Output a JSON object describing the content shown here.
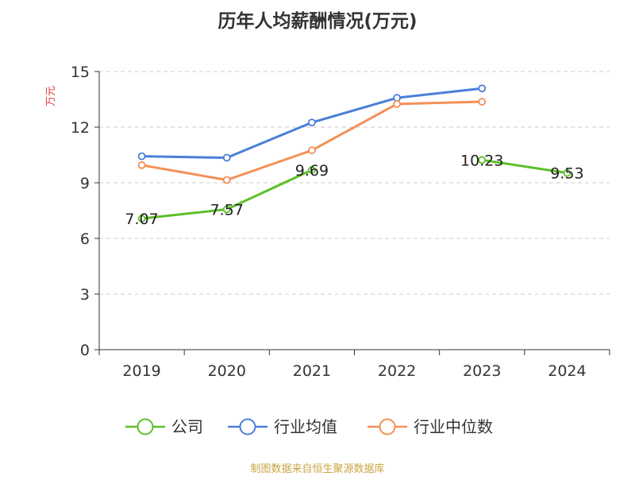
{
  "chart_data": {
    "type": "line",
    "title": "历年人均薪酬情况(万元)",
    "ylabel": "万元",
    "xlabel": "",
    "categories": [
      "2019",
      "2020",
      "2021",
      "2022",
      "2023",
      "2024"
    ],
    "ylim": [
      0,
      15
    ],
    "yticks": [
      0,
      3,
      6,
      9,
      12,
      15
    ],
    "grid": true,
    "legend_position": "bottom",
    "series": [
      {
        "name": "公司",
        "color": "#5cc02a",
        "values": [
          7.07,
          7.57,
          9.69,
          null,
          10.23,
          9.53
        ],
        "show_labels": true
      },
      {
        "name": "行业均值",
        "color": "#4a7fd8",
        "values": [
          10.43,
          10.35,
          12.25,
          13.58,
          14.09,
          null
        ],
        "show_labels": false
      },
      {
        "name": "行业中位数",
        "color": "#f39056",
        "values": [
          9.95,
          9.15,
          10.75,
          13.25,
          13.37,
          null
        ],
        "show_labels": false
      }
    ]
  },
  "source_text": "制图数据来自恒生聚源数据库"
}
